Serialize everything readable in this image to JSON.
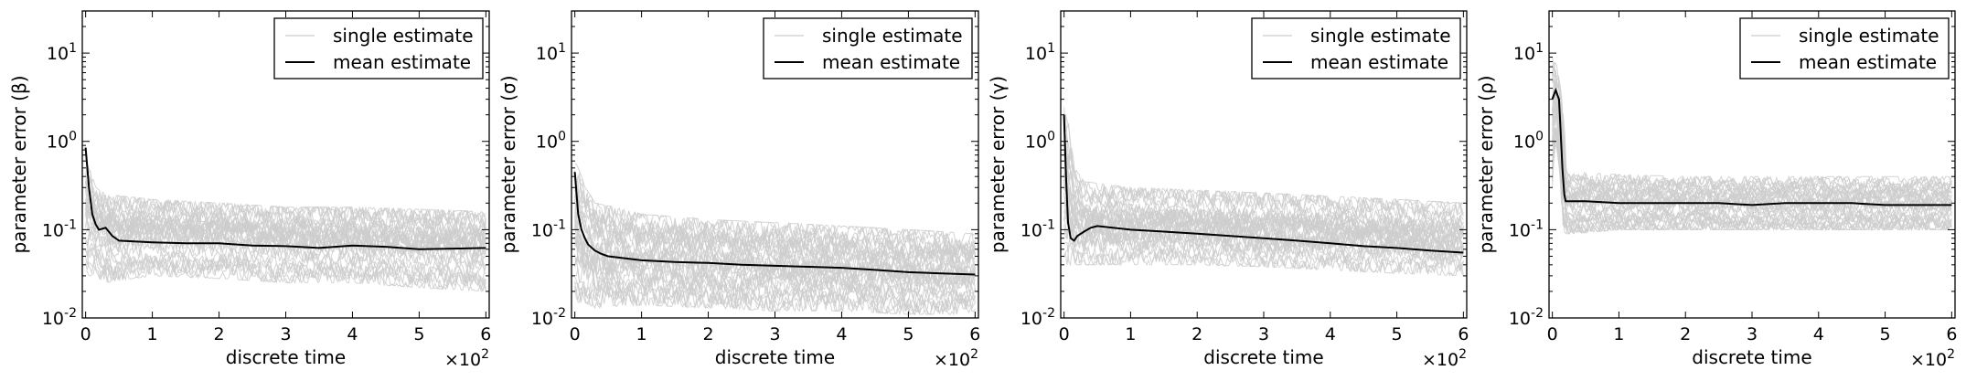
{
  "chart_data": [
    {
      "type": "line",
      "ylabel": "parameter error (β)",
      "xlabel": "discrete time",
      "x_multiplier": "×10^2",
      "yscale": "log",
      "xlim": [
        -0.05,
        6.05
      ],
      "ylim": [
        0.01,
        30
      ],
      "x_ticks": [
        "0",
        "1",
        "2",
        "3",
        "4",
        "5",
        "6"
      ],
      "y_ticks": [
        "10^-2",
        "10^-1",
        "10^0",
        "10^1"
      ],
      "legend_position": "top-right",
      "series": [
        {
          "name": "single estimate",
          "color": "#cccccc",
          "band": {
            "x": [
              0,
              0.15,
              0.3,
              1,
              2,
              3,
              4,
              5,
              6
            ],
            "low": [
              0.03,
              0.03,
              0.025,
              0.03,
              0.028,
              0.025,
              0.025,
              0.022,
              0.02
            ],
            "high": [
              0.6,
              0.3,
              0.25,
              0.22,
              0.2,
              0.18,
              0.18,
              0.17,
              0.16
            ]
          }
        },
        {
          "name": "mean estimate",
          "color": "#000000",
          "x": [
            0,
            0.05,
            0.1,
            0.15,
            0.2,
            0.3,
            0.4,
            0.5,
            1,
            1.5,
            2,
            2.5,
            3,
            3.5,
            4,
            4.5,
            5,
            5.5,
            6
          ],
          "y": [
            0.85,
            0.3,
            0.15,
            0.115,
            0.1,
            0.105,
            0.085,
            0.075,
            0.072,
            0.07,
            0.07,
            0.066,
            0.065,
            0.062,
            0.066,
            0.064,
            0.06,
            0.061,
            0.062
          ]
        }
      ]
    },
    {
      "type": "line",
      "ylabel": "parameter error (σ)",
      "xlabel": "discrete time",
      "x_multiplier": "×10^2",
      "yscale": "log",
      "xlim": [
        -0.05,
        6.05
      ],
      "ylim": [
        0.01,
        30
      ],
      "x_ticks": [
        "0",
        "1",
        "2",
        "3",
        "4",
        "5",
        "6"
      ],
      "y_ticks": [
        "10^-2",
        "10^-1",
        "10^0",
        "10^1"
      ],
      "legend_position": "top-right",
      "series": [
        {
          "name": "single estimate",
          "color": "#cccccc",
          "band": {
            "x": [
              0,
              0.15,
              0.3,
              1,
              2,
              3,
              4,
              5,
              6
            ],
            "low": [
              0.015,
              0.015,
              0.013,
              0.014,
              0.013,
              0.012,
              0.012,
              0.011,
              0.011
            ],
            "high": [
              0.6,
              0.3,
              0.2,
              0.15,
              0.13,
              0.12,
              0.11,
              0.1,
              0.09
            ]
          }
        },
        {
          "name": "mean estimate",
          "color": "#000000",
          "x": [
            0,
            0.05,
            0.1,
            0.15,
            0.2,
            0.3,
            0.4,
            0.5,
            1,
            1.5,
            2,
            2.5,
            3,
            3.5,
            4,
            4.5,
            5,
            5.5,
            6
          ],
          "y": [
            0.45,
            0.15,
            0.1,
            0.08,
            0.068,
            0.058,
            0.053,
            0.05,
            0.045,
            0.043,
            0.042,
            0.04,
            0.039,
            0.038,
            0.037,
            0.035,
            0.033,
            0.032,
            0.031
          ]
        }
      ]
    },
    {
      "type": "line",
      "ylabel": "parameter error (γ)",
      "xlabel": "discrete time",
      "x_multiplier": "×10^2",
      "yscale": "log",
      "xlim": [
        -0.05,
        6.05
      ],
      "ylim": [
        0.01,
        30
      ],
      "x_ticks": [
        "0",
        "1",
        "2",
        "3",
        "4",
        "5",
        "6"
      ],
      "y_ticks": [
        "10^-2",
        "10^-1",
        "10^0",
        "10^1"
      ],
      "legend_position": "top-right",
      "series": [
        {
          "name": "single estimate",
          "color": "#cccccc",
          "band": {
            "x": [
              0,
              0.15,
              0.3,
              1,
              2,
              3,
              4,
              5,
              6
            ],
            "low": [
              0.04,
              0.04,
              0.04,
              0.04,
              0.04,
              0.038,
              0.035,
              0.032,
              0.03
            ],
            "high": [
              2.5,
              0.5,
              0.35,
              0.3,
              0.28,
              0.26,
              0.24,
              0.22,
              0.2
            ]
          }
        },
        {
          "name": "mean estimate",
          "color": "#000000",
          "x": [
            0,
            0.03,
            0.06,
            0.1,
            0.15,
            0.2,
            0.3,
            0.4,
            0.5,
            1,
            1.5,
            2,
            2.5,
            3,
            3.5,
            4,
            4.5,
            5,
            5.5,
            6
          ],
          "y": [
            2.0,
            0.4,
            0.12,
            0.08,
            0.075,
            0.085,
            0.095,
            0.105,
            0.11,
            0.1,
            0.095,
            0.09,
            0.085,
            0.08,
            0.075,
            0.07,
            0.065,
            0.062,
            0.058,
            0.055
          ]
        }
      ]
    },
    {
      "type": "line",
      "ylabel": "parameter error (ρ)",
      "xlabel": "discrete time",
      "x_multiplier": "×10^2",
      "yscale": "log",
      "xlim": [
        -0.05,
        6.05
      ],
      "ylim": [
        0.01,
        30
      ],
      "x_ticks": [
        "0",
        "1",
        "2",
        "3",
        "4",
        "5",
        "6"
      ],
      "y_ticks": [
        "10^-2",
        "10^-1",
        "10^0",
        "10^1"
      ],
      "legend_position": "top-right",
      "series": [
        {
          "name": "single estimate",
          "color": "#cccccc",
          "band": {
            "x": [
              0,
              0.05,
              0.1,
              0.15,
              0.2,
              0.3,
              1,
              2,
              3,
              4,
              5,
              6
            ],
            "low": [
              0.3,
              1.0,
              0.5,
              0.1,
              0.09,
              0.09,
              0.1,
              0.1,
              0.1,
              0.1,
              0.1,
              0.1
            ],
            "high": [
              10,
              8,
              6,
              3,
              0.5,
              0.45,
              0.42,
              0.4,
              0.4,
              0.4,
              0.4,
              0.4
            ]
          }
        },
        {
          "name": "mean estimate",
          "color": "#000000",
          "x": [
            0,
            0.05,
            0.1,
            0.12,
            0.15,
            0.18,
            0.2,
            0.3,
            0.5,
            1,
            1.5,
            2,
            2.5,
            3,
            3.5,
            4,
            4.5,
            5,
            5.5,
            6
          ],
          "y": [
            3.0,
            3.8,
            3.0,
            1.5,
            0.5,
            0.25,
            0.21,
            0.21,
            0.21,
            0.2,
            0.2,
            0.2,
            0.2,
            0.19,
            0.2,
            0.2,
            0.2,
            0.19,
            0.19,
            0.19
          ]
        }
      ]
    }
  ]
}
